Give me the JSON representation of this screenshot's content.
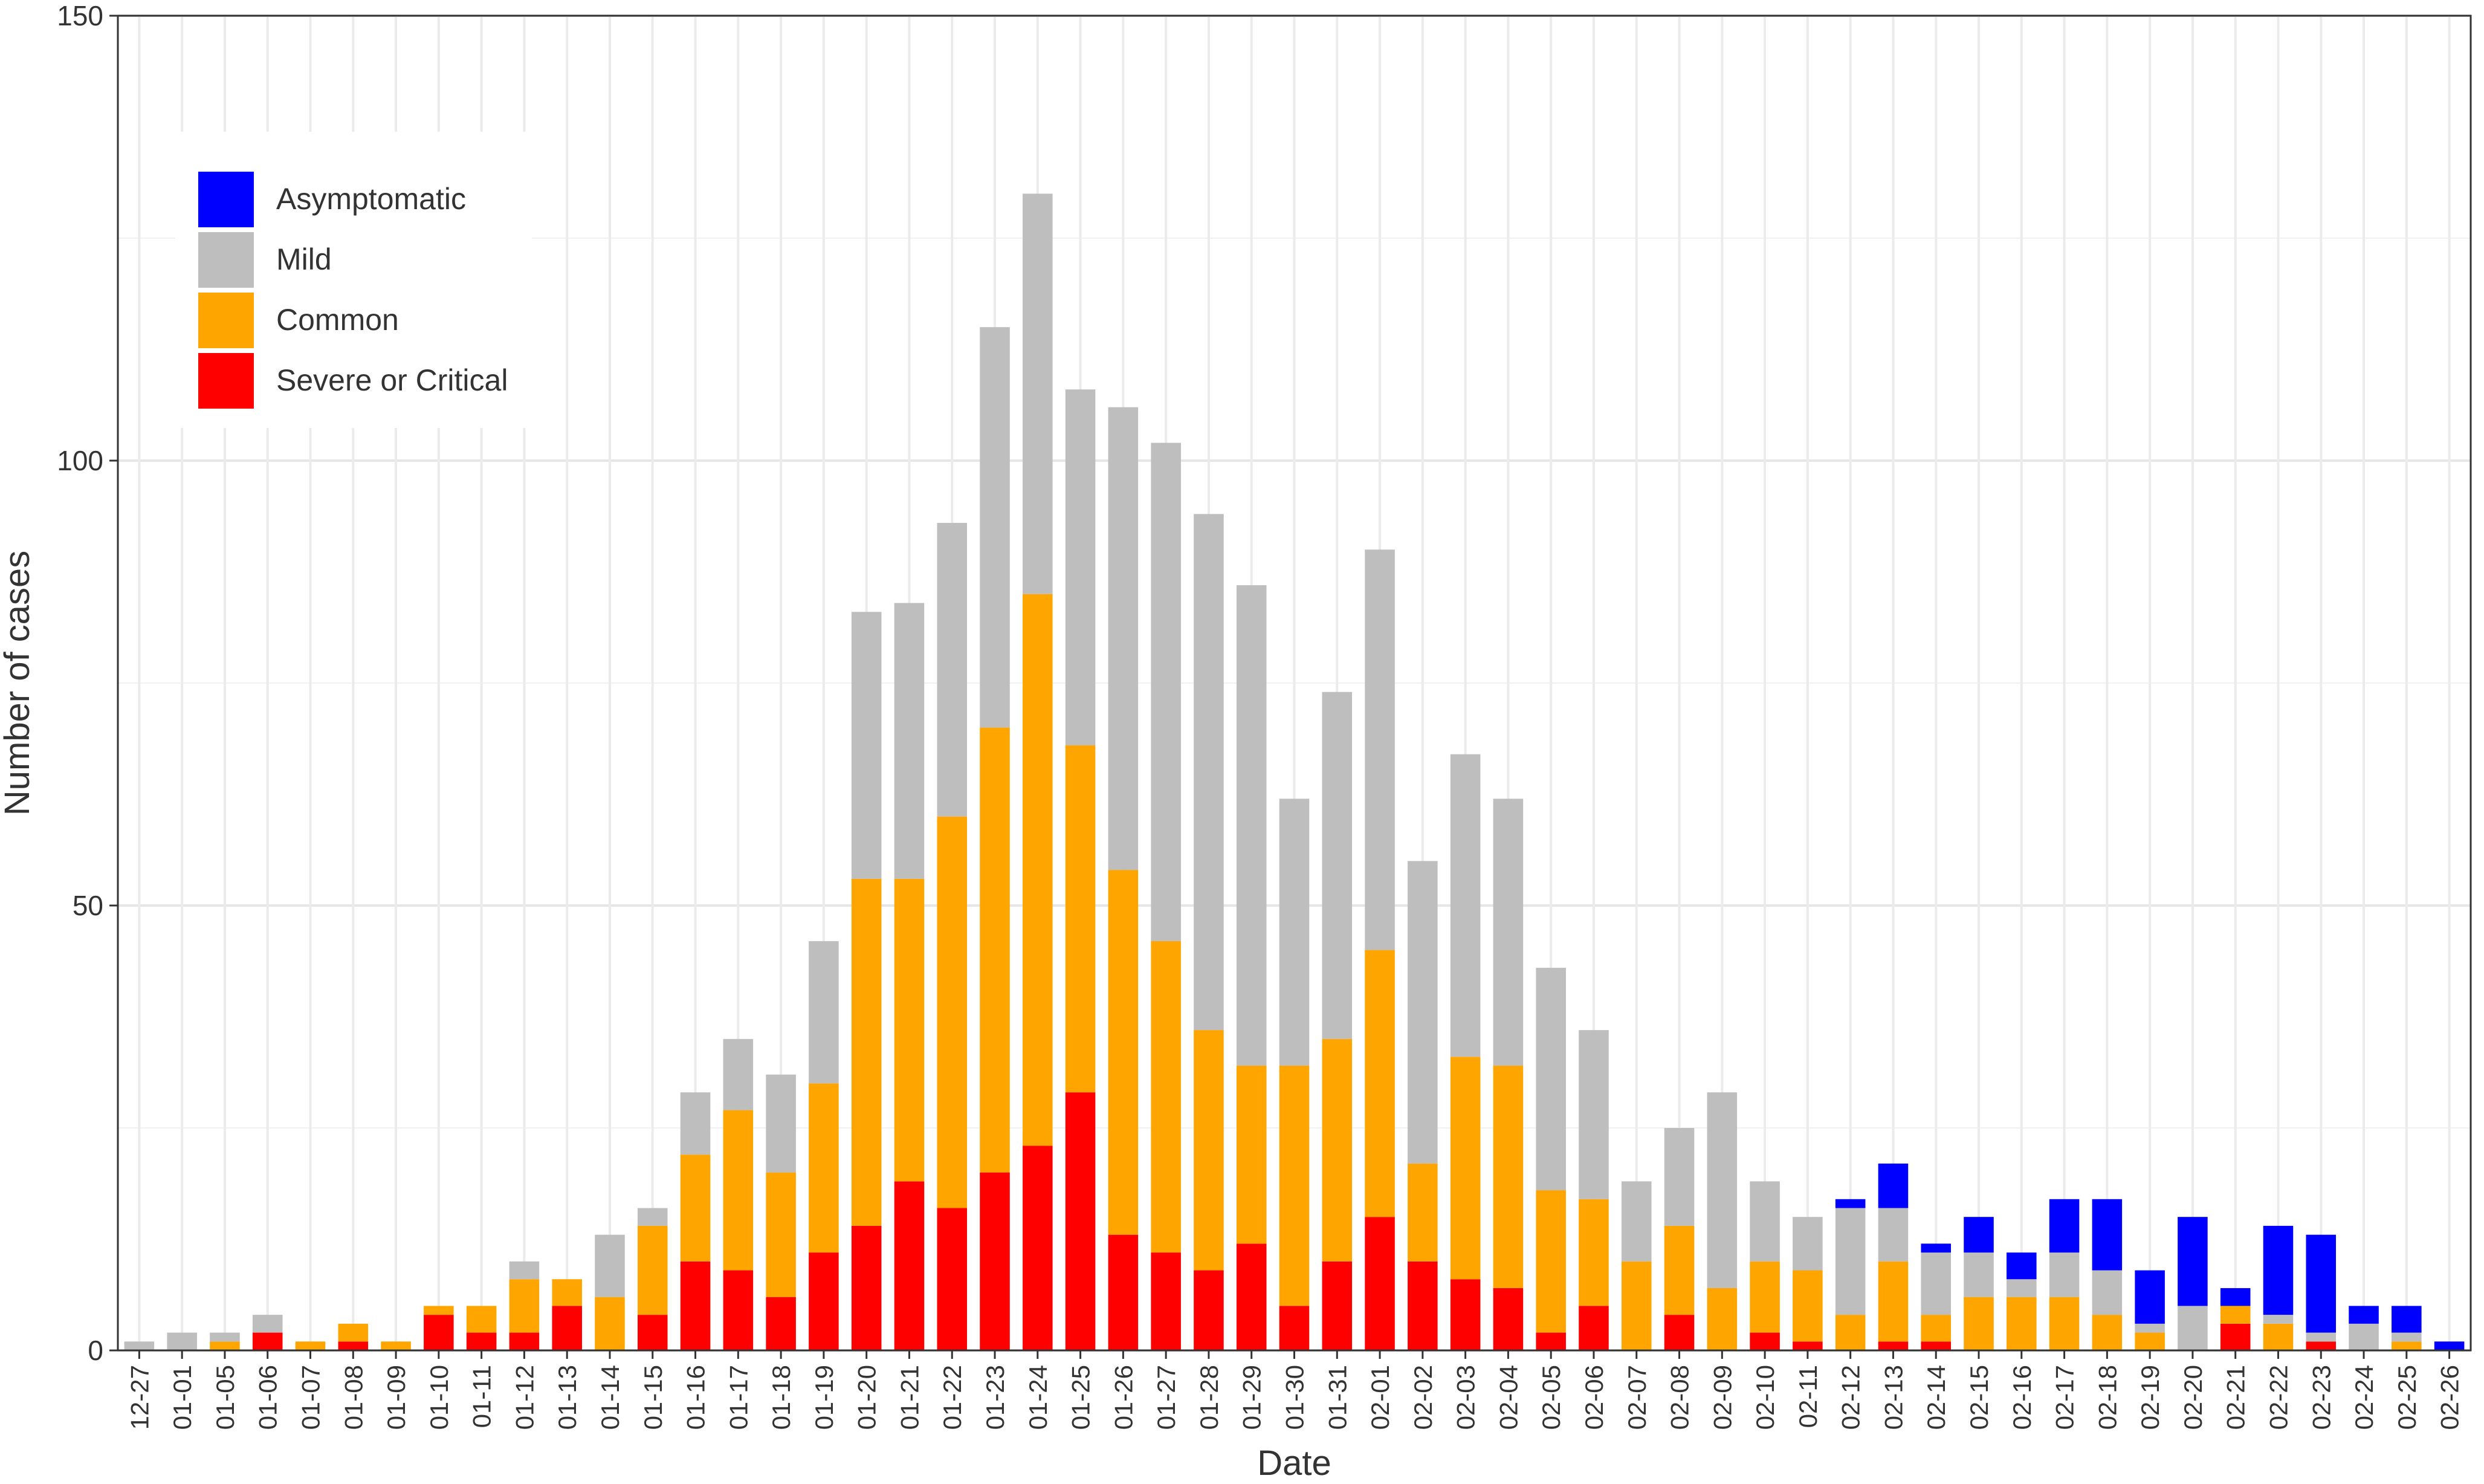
{
  "chart_data": {
    "type": "bar",
    "stacked": true,
    "xlabel": "Date",
    "ylabel": "Number of cases",
    "ylim": [
      0,
      150
    ],
    "yticks": [
      0,
      50,
      100,
      150
    ],
    "grid": true,
    "legend_position": "top-left",
    "categories": [
      "12-27",
      "01-01",
      "01-05",
      "01-06",
      "01-07",
      "01-08",
      "01-09",
      "01-10",
      "01-11",
      "01-12",
      "01-13",
      "01-14",
      "01-15",
      "01-16",
      "01-17",
      "01-18",
      "01-19",
      "01-20",
      "01-21",
      "01-22",
      "01-23",
      "01-24",
      "01-25",
      "01-26",
      "01-27",
      "01-28",
      "01-29",
      "01-30",
      "01-31",
      "02-01",
      "02-02",
      "02-03",
      "02-04",
      "02-05",
      "02-06",
      "02-07",
      "02-08",
      "02-09",
      "02-10",
      "02-11",
      "02-12",
      "02-13",
      "02-14",
      "02-15",
      "02-16",
      "02-17",
      "02-18",
      "02-19",
      "02-20",
      "02-21",
      "02-22",
      "02-23",
      "02-24",
      "02-25",
      "02-26"
    ],
    "series": [
      {
        "name": "Severe or Critical",
        "color": "#ff0000",
        "values": [
          0,
          0,
          0,
          2,
          0,
          1,
          0,
          4,
          2,
          2,
          5,
          0,
          4,
          10,
          9,
          6,
          11,
          14,
          19,
          16,
          20,
          23,
          29,
          13,
          11,
          9,
          12,
          5,
          10,
          15,
          10,
          8,
          7,
          2,
          5,
          0,
          4,
          0,
          2,
          1,
          0,
          1,
          1,
          0,
          0,
          0,
          0,
          0,
          0,
          3,
          0,
          1,
          0,
          0,
          0
        ]
      },
      {
        "name": "Common",
        "color": "#ffa500",
        "values": [
          0,
          0,
          1,
          0,
          1,
          2,
          1,
          1,
          3,
          6,
          3,
          6,
          10,
          12,
          18,
          14,
          19,
          39,
          34,
          44,
          50,
          62,
          39,
          41,
          35,
          27,
          20,
          27,
          25,
          30,
          11,
          25,
          25,
          16,
          12,
          10,
          10,
          7,
          8,
          8,
          4,
          9,
          3,
          6,
          6,
          6,
          4,
          2,
          0,
          2,
          3,
          0,
          0,
          1,
          0
        ]
      },
      {
        "name": "Mild",
        "color": "#bebebe",
        "values": [
          1,
          2,
          1,
          2,
          0,
          0,
          0,
          0,
          0,
          2,
          0,
          7,
          2,
          7,
          8,
          11,
          16,
          30,
          31,
          33,
          45,
          45,
          40,
          52,
          56,
          58,
          54,
          30,
          39,
          45,
          34,
          34,
          30,
          25,
          19,
          9,
          11,
          22,
          9,
          6,
          12,
          6,
          7,
          5,
          2,
          5,
          5,
          1,
          5,
          0,
          1,
          1,
          3,
          1,
          0
        ]
      },
      {
        "name": "Asymptomatic",
        "color": "#0000ff",
        "values": [
          0,
          0,
          0,
          0,
          0,
          0,
          0,
          0,
          0,
          0,
          0,
          0,
          0,
          0,
          0,
          0,
          0,
          0,
          0,
          0,
          0,
          0,
          0,
          0,
          0,
          0,
          0,
          0,
          0,
          0,
          0,
          0,
          0,
          0,
          0,
          0,
          0,
          0,
          0,
          0,
          1,
          5,
          1,
          4,
          3,
          6,
          8,
          6,
          10,
          2,
          10,
          11,
          2,
          3,
          1
        ]
      }
    ],
    "legend_order": [
      "Asymptomatic",
      "Mild",
      "Common",
      "Severe or Critical"
    ]
  }
}
